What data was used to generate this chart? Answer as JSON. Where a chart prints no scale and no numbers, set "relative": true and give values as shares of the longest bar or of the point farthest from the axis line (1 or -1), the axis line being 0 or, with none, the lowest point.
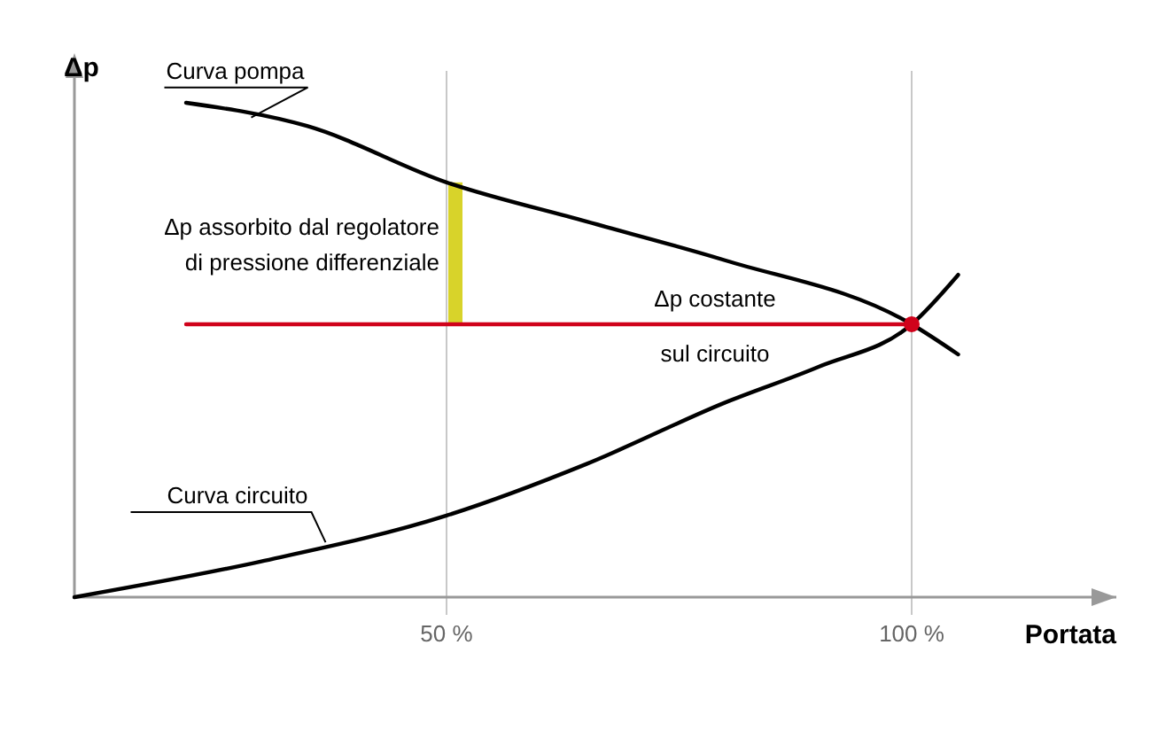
{
  "chart_data": {
    "type": "line",
    "relative": true,
    "xlabel": "Portata",
    "ylabel": "Δp",
    "xlim": [
      10,
      122
    ],
    "xticks": [
      {
        "value": 50,
        "label": "50 %"
      },
      {
        "value": 100,
        "label": "100 %"
      }
    ],
    "line_style": "solid",
    "series": [
      {
        "color": "#000000",
        "x": [
          22,
          35,
          50,
          65,
          80,
          100,
          105
        ],
        "values": [
          1,
          0.953,
          0.839,
          0.76,
          0.681,
          0.552,
          0.491
        ]
      },
      {
        "color": "#000000",
        "x": [
          10,
          30,
          50,
          65,
          80,
          90,
          100,
          105
        ],
        "values": [
          0,
          0.072,
          0.165,
          0.269,
          0.394,
          0.466,
          0.552,
          0.652
        ]
      },
      {
        "color": "#d0021b",
        "x": [
          22,
          100
        ],
        "values": [
          0.552,
          0.552
        ]
      },
      {
        "type": "scatter",
        "color": "#d0021b",
        "x": [
          100
        ],
        "values": [
          0.552
        ]
      }
    ],
    "ref_lines": [
      {
        "axis": "x",
        "value": 50,
        "color": "#c8c8c8"
      },
      {
        "axis": "x",
        "value": 100,
        "color": "#c8c8c8"
      }
    ],
    "annotations": [
      {
        "text": "Curva pompa",
        "x": 29,
        "y": 0.97
      },
      {
        "text": "Curva circuito",
        "x": 37,
        "y": 0.111
      },
      {
        "text": "Δp assorbito dal regolatore\ndi pressione differenziale",
        "x": 50,
        "y": 0.7
      },
      {
        "text": "Δp costante",
        "x": 80,
        "y": 0.552
      },
      {
        "text": "sul circuito",
        "x": 80,
        "y": 0.552
      }
    ]
  }
}
